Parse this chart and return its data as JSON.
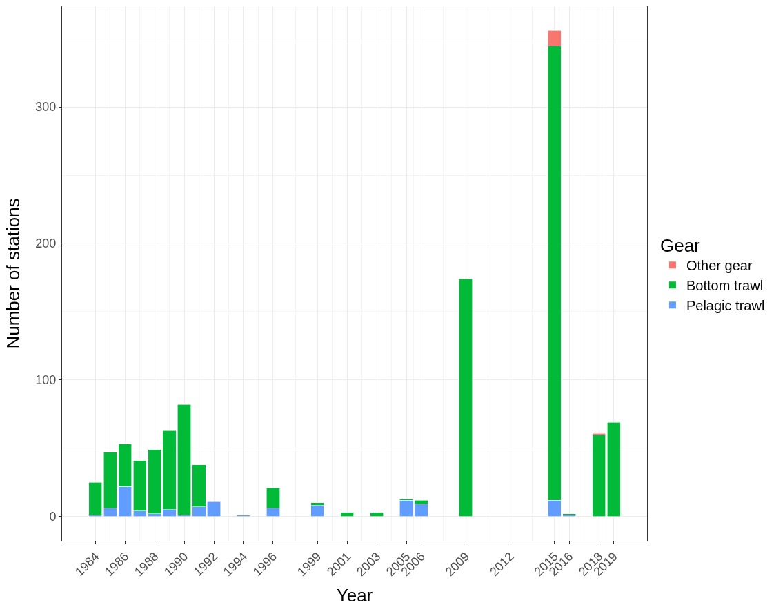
{
  "chart_data": {
    "type": "bar",
    "stacked": true,
    "xlabel": "Year",
    "ylabel": "Number of stations",
    "legend_title": "Gear",
    "legend": "right",
    "grid": true,
    "x": [
      1984,
      1985,
      1986,
      1987,
      1988,
      1989,
      1990,
      1991,
      1992,
      1994,
      1996,
      1999,
      2001,
      2003,
      2005,
      2006,
      2009,
      2015,
      2016,
      2018,
      2019
    ],
    "series": [
      {
        "name": "Pelagic trawl",
        "color": "#619cff",
        "values": [
          1,
          6,
          22,
          4,
          2,
          5,
          1,
          7,
          11,
          1,
          6,
          8,
          null,
          null,
          12,
          9,
          null,
          12,
          1,
          null,
          null
        ]
      },
      {
        "name": "Bottom trawl",
        "color": "#00ba38",
        "values": [
          24,
          41,
          31,
          37,
          47,
          58,
          81,
          31,
          null,
          null,
          15,
          2,
          3,
          3,
          1,
          3,
          174,
          333,
          1,
          60,
          69
        ]
      },
      {
        "name": "Other gear",
        "color": "#f8766d",
        "values": [
          null,
          null,
          null,
          null,
          null,
          null,
          null,
          null,
          null,
          null,
          null,
          null,
          null,
          null,
          null,
          null,
          null,
          11,
          null,
          1,
          null
        ]
      }
    ],
    "xlim": [
      1981.75,
      2021.25
    ],
    "xticks": [
      1984,
      1986,
      1988,
      1990,
      1992,
      1994,
      1996,
      1999,
      2001,
      2003,
      2005,
      2006,
      2009,
      2012,
      2015,
      2016,
      2018,
      2019
    ],
    "ylim": [
      -17.8,
      373.8
    ],
    "yticks": [
      0,
      100,
      200,
      300
    ]
  }
}
